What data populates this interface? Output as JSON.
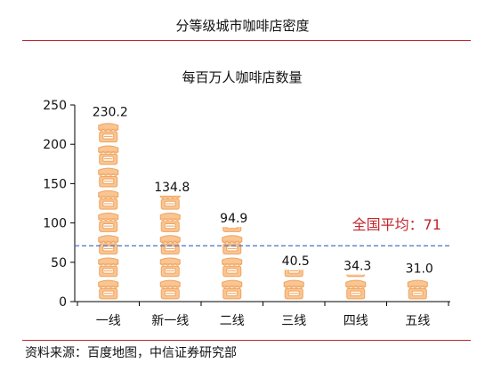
{
  "figure": {
    "title": "分等级城市咖啡店密度",
    "source": "资料来源：百度地图，中信证券研究部"
  },
  "colors": {
    "rule": "#c0272d",
    "icon_fill": "#f9c592",
    "icon_stroke": "#f0a35e",
    "average_line": "#4a72c4",
    "average_label": "#c0272d",
    "axis": "#000000"
  },
  "chart_data": {
    "type": "bar",
    "title": "每百万人咖啡店数量",
    "categories": [
      "一线",
      "新一线",
      "二线",
      "三线",
      "四线",
      "五线"
    ],
    "values": [
      230.2,
      134.8,
      94.9,
      40.5,
      34.3,
      31.0
    ],
    "value_labels": [
      "230.2",
      "134.8",
      "94.9",
      "40.5",
      "34.3",
      "31.0"
    ],
    "yticks": [
      0,
      50,
      100,
      150,
      200,
      250
    ],
    "ylim": [
      0,
      250
    ],
    "grid": false,
    "average": {
      "value": 71,
      "label": "全国平均：71"
    },
    "bar_style": "stacked coffee-shop icons (pictograph)"
  }
}
